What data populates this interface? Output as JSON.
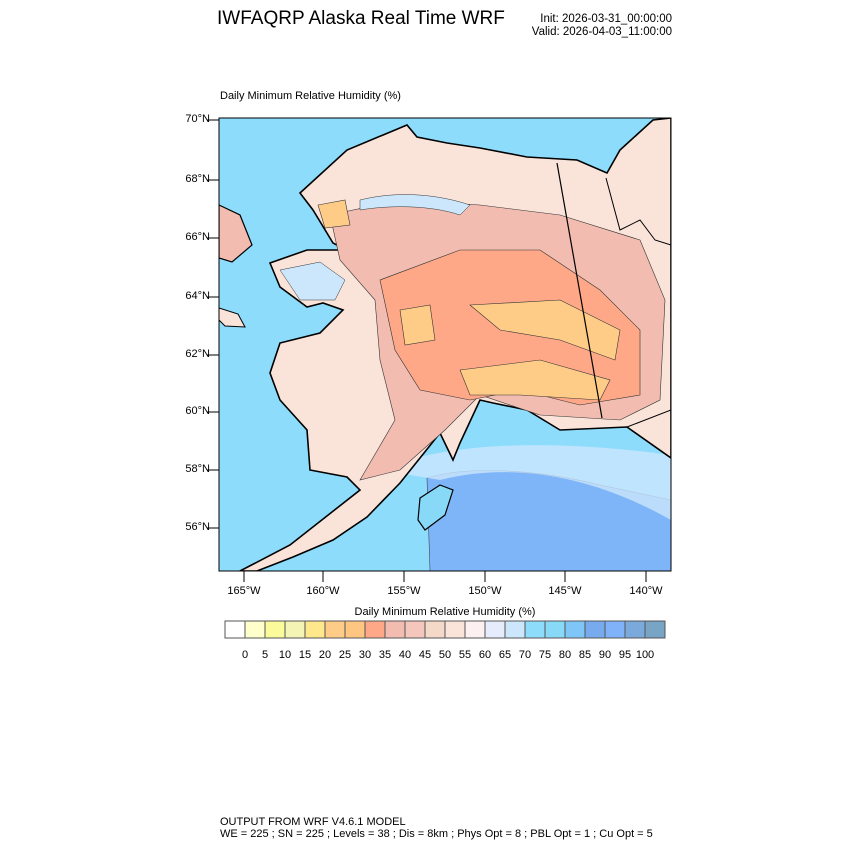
{
  "header": {
    "title": "IWFAQRP Alaska Real Time WRF",
    "init": "Init: 2026-03-31_00:00:00",
    "valid": "Valid: 2026-04-03_11:00:00"
  },
  "map": {
    "subtitle": "Daily Minimum Relative Humidity    (%)",
    "lat_labels": [
      "70°N",
      "68°N",
      "66°N",
      "64°N",
      "62°N",
      "60°N",
      "58°N",
      "56°N"
    ],
    "lon_labels": [
      "165°W",
      "160°W",
      "155°W",
      "150°W",
      "145°W",
      "140°W"
    ],
    "colors": {
      "ocean": "#8ddcfc",
      "gulf": "#7eb4f8",
      "border": "#000000"
    }
  },
  "colorbar": {
    "title": "Daily Minimum Relative Humidity  (%)",
    "labels": [
      "0",
      "5",
      "10",
      "15",
      "20",
      "25",
      "30",
      "35",
      "40",
      "45",
      "50",
      "55",
      "60",
      "65",
      "70",
      "75",
      "80",
      "85",
      "90",
      "95",
      "100"
    ],
    "colors": [
      "#ffffff",
      "#ffffcc",
      "#fbfb9c",
      "#f4f4b4",
      "#ffe88c",
      "#ffcc88",
      "#ffc682",
      "#ffa888",
      "#f2bcb0",
      "#f4c6bc",
      "#f4d8c8",
      "#fae4da",
      "#fdf0f0",
      "#e6ecfc",
      "#cce6fc",
      "#8edcfc",
      "#88d8f8",
      "#7ec6f8",
      "#78aaee",
      "#80b2fa",
      "#7aaadc",
      "#78a4c6"
    ]
  },
  "footer": {
    "line1": "OUTPUT FROM WRF V4.6.1 MODEL",
    "line2": "WE = 225 ; SN = 225 ; Levels = 38 ; Dis = 8km ; Phys Opt = 8 ; PBL Opt = 1 ; Cu Opt = 5"
  }
}
